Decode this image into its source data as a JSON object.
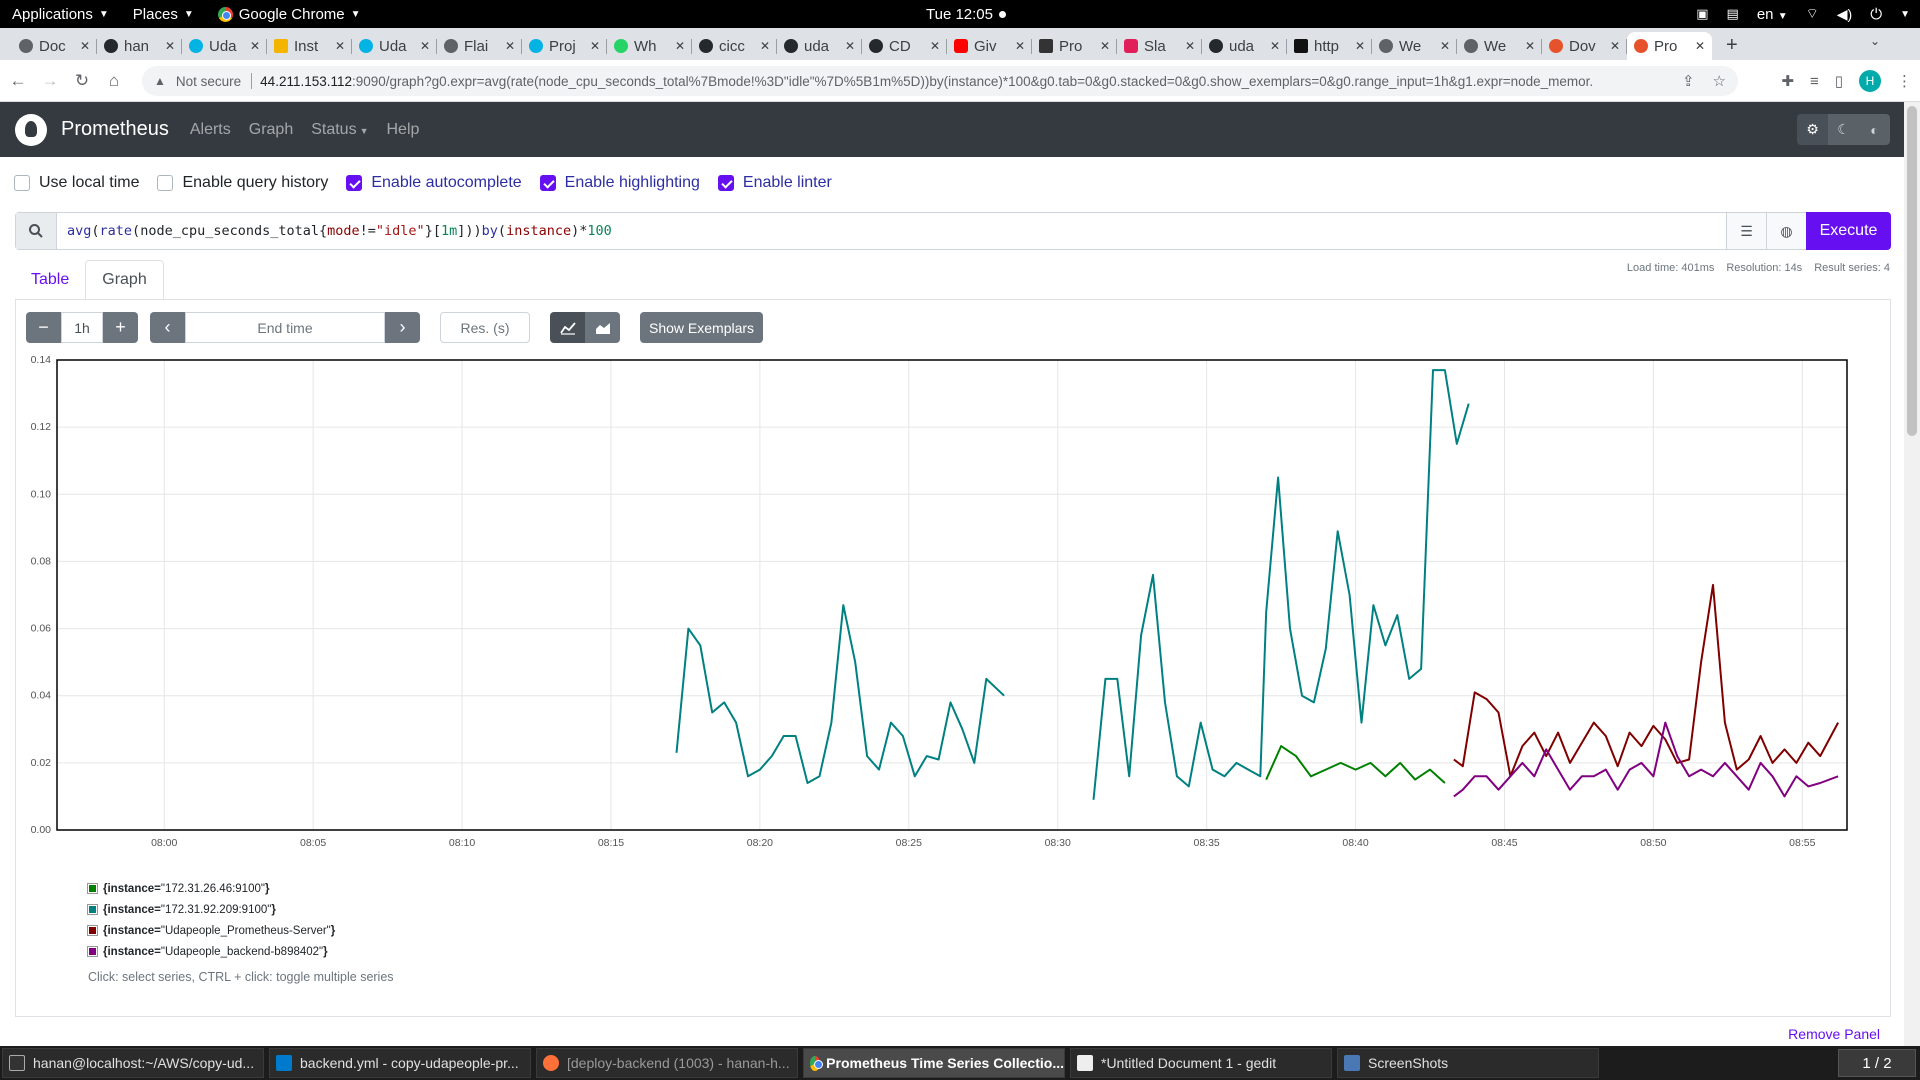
{
  "topbar": {
    "applications": "Applications",
    "places": "Places",
    "browser": "Google Chrome",
    "clock": "Tue 12:05",
    "lang": "en"
  },
  "tabs": [
    "Doc",
    "han",
    "Uda",
    "Inst",
    "Uda",
    "Flai",
    "Proj",
    "Wh",
    "cicc",
    "uda",
    "CD",
    "Giv",
    "Pro",
    "Sla",
    "uda",
    "http",
    "We",
    "We",
    "Dov",
    "Pro"
  ],
  "address": {
    "not_secure": "Not secure",
    "host": "44.211.153.112",
    "path": ":9090/graph?g0.expr=avg(rate(node_cpu_seconds_total%7Bmode!%3D\"idle\"%7D%5B1m%5D))by(instance)*100&g0.tab=0&g0.stacked=0&g0.show_exemplars=0&g0.range_input=1h&g1.expr=node_memor...",
    "avatar": "H"
  },
  "prom": {
    "brand": "Prometheus",
    "nav": {
      "alerts": "Alerts",
      "graph": "Graph",
      "status": "Status",
      "help": "Help"
    }
  },
  "options": {
    "local_time": "Use local time",
    "query_history": "Enable query history",
    "autocomplete": "Enable autocomplete",
    "highlighting": "Enable highlighting",
    "linter": "Enable linter"
  },
  "query": {
    "t1": "avg",
    "t2": "(",
    "t3": "rate",
    "t4": "(",
    "t5": "node_cpu_seconds_total",
    "t6": "{",
    "t7": "mode",
    "t8": "!=",
    "t9": "\"idle\"",
    "t10": "}",
    "t11": "[",
    "t12": "1m",
    "t13": "]",
    "t14": "))",
    "t15": "by",
    "t16": "(",
    "t17": "instance",
    "t18": ")*",
    "t19": "100",
    "execute": "Execute"
  },
  "stats": {
    "load": "Load time: 401ms",
    "res": "Resolution: 14s",
    "series": "Result series: 4"
  },
  "panel_tabs": {
    "table": "Table",
    "graph": "Graph"
  },
  "controls": {
    "range": "1h",
    "end_time": "End time",
    "res": "Res. (s)",
    "exemplars": "Show Exemplars"
  },
  "legend": {
    "prefix": "{instance=",
    "suffix": "}",
    "hint": "Click: select series, CTRL + click: toggle multiple series",
    "remove_panel": "Remove Panel"
  },
  "taskbar": [
    "hanan@localhost:~/AWS/copy-ud...",
    "backend.yml - copy-udapeople-pr...",
    "[deploy-backend (1003) - hanan-h...",
    "Prometheus Time Series Collectio...",
    "*Untitled Document 1 - gedit",
    "ScreenShots"
  ],
  "pager": "1 / 2",
  "chart_data": {
    "type": "line",
    "xlabel": "",
    "ylabel": "",
    "x_ticks": [
      "08:00",
      "08:05",
      "08:10",
      "08:15",
      "08:20",
      "08:25",
      "08:30",
      "08:35",
      "08:40",
      "08:45",
      "08:50",
      "08:55"
    ],
    "y_ticks": [
      "0.00",
      "0.02",
      "0.04",
      "0.06",
      "0.08",
      "0.10",
      "0.12",
      "0.14"
    ],
    "xlim_minutes_after_0800": [
      -3.6,
      56.5
    ],
    "ylim": [
      0,
      0.14
    ],
    "legend_position": "bottom-left",
    "grid": true,
    "series": [
      {
        "name": "\"172.31.26.46:9100\"",
        "color": "#008000",
        "x": [
          "08:37",
          "08:37.5",
          "08:38",
          "08:38.5",
          "08:39",
          "08:39.5",
          "08:40",
          "08:40.5",
          "08:41",
          "08:41.5",
          "08:42",
          "08:42.5",
          "08:43"
        ],
        "y": [
          0.015,
          0.025,
          0.022,
          0.016,
          0.018,
          0.02,
          0.018,
          0.02,
          0.016,
          0.02,
          0.015,
          0.018,
          0.014
        ]
      },
      {
        "name": "\"172.31.92.209:9100\"",
        "color": "#008080",
        "segments": [
          {
            "x": [
              "08:17.2",
              "08:17.6",
              "08:18",
              "08:18.4",
              "08:18.8",
              "08:19.2",
              "08:19.6",
              "08:20",
              "08:20.4",
              "08:20.8",
              "08:21.2",
              "08:21.6",
              "08:22",
              "08:22.4",
              "08:22.8",
              "08:23.2",
              "08:23.6",
              "08:24",
              "08:24.4",
              "08:24.8",
              "08:25.2",
              "08:25.6",
              "08:26",
              "08:26.4",
              "08:26.8",
              "08:27.2",
              "08:27.6",
              "08:28.2"
            ],
            "y": [
              0.023,
              0.06,
              0.055,
              0.035,
              0.038,
              0.032,
              0.016,
              0.018,
              0.022,
              0.028,
              0.028,
              0.014,
              0.016,
              0.032,
              0.067,
              0.05,
              0.022,
              0.018,
              0.032,
              0.028,
              0.016,
              0.022,
              0.021,
              0.038,
              0.03,
              0.02,
              0.045,
              0.04
            ]
          },
          {
            "x": [
              "08:31.2",
              "08:31.6",
              "08:32",
              "08:32.4",
              "08:32.8",
              "08:33.2",
              "08:33.6",
              "08:34",
              "08:34.4",
              "08:34.8",
              "08:35.2",
              "08:35.6",
              "08:36",
              "08:36.4",
              "08:36.8",
              "08:37",
              "08:37.4",
              "08:37.8",
              "08:38.2",
              "08:38.6",
              "08:39",
              "08:39.4",
              "08:39.8",
              "08:40.2",
              "08:40.6",
              "08:41",
              "08:41.4",
              "08:41.8",
              "08:42.2",
              "08:42.6",
              "08:43",
              "08:43.4",
              "08:43.8"
            ],
            "y": [
              0.009,
              0.045,
              0.045,
              0.016,
              0.058,
              0.076,
              0.038,
              0.016,
              0.013,
              0.032,
              0.018,
              0.016,
              0.02,
              0.018,
              0.016,
              0.065,
              0.105,
              0.06,
              0.04,
              0.038,
              0.054,
              0.089,
              0.07,
              0.032,
              0.067,
              0.055,
              0.064,
              0.045,
              0.048,
              0.137,
              0.137,
              0.115,
              0.127
            ]
          }
        ]
      },
      {
        "name": "\"Udapeople_Prometheus-Server\"",
        "color": "#800000",
        "x": [
          "08:43.3",
          "08:43.6",
          "08:44",
          "08:44.4",
          "08:44.8",
          "08:45.2",
          "08:45.6",
          "08:46",
          "08:46.4",
          "08:46.8",
          "08:47.2",
          "08:47.6",
          "08:48",
          "08:48.4",
          "08:48.8",
          "08:49.2",
          "08:49.6",
          "08:50",
          "08:50.4",
          "08:50.8",
          "08:51.2",
          "08:51.6",
          "08:52",
          "08:52.4",
          "08:52.8",
          "08:53.2",
          "08:53.6",
          "08:54",
          "08:54.4",
          "08:54.8",
          "08:55.2",
          "08:55.6",
          "08:56.2"
        ],
        "y": [
          0.021,
          0.019,
          0.041,
          0.039,
          0.035,
          0.016,
          0.025,
          0.029,
          0.022,
          0.029,
          0.02,
          0.026,
          0.032,
          0.028,
          0.019,
          0.029,
          0.025,
          0.031,
          0.027,
          0.02,
          0.021,
          0.05,
          0.073,
          0.032,
          0.018,
          0.021,
          0.028,
          0.02,
          0.024,
          0.02,
          0.026,
          0.022,
          0.032
        ]
      },
      {
        "name": "\"Udapeople_backend-b898402\"",
        "color": "#800080",
        "x": [
          "08:43.3",
          "08:43.6",
          "08:44",
          "08:44.4",
          "08:44.8",
          "08:45.2",
          "08:45.6",
          "08:46",
          "08:46.4",
          "08:46.8",
          "08:47.2",
          "08:47.6",
          "08:48",
          "08:48.4",
          "08:48.8",
          "08:49.2",
          "08:49.6",
          "08:50",
          "08:50.4",
          "08:50.8",
          "08:51.2",
          "08:51.6",
          "08:52",
          "08:52.4",
          "08:52.8",
          "08:53.2",
          "08:53.6",
          "08:54",
          "08:54.4",
          "08:54.8",
          "08:55.2",
          "08:55.6",
          "08:56.2"
        ],
        "y": [
          0.01,
          0.012,
          0.016,
          0.016,
          0.012,
          0.016,
          0.02,
          0.016,
          0.024,
          0.018,
          0.012,
          0.016,
          0.016,
          0.018,
          0.012,
          0.018,
          0.02,
          0.016,
          0.032,
          0.022,
          0.016,
          0.018,
          0.016,
          0.02,
          0.016,
          0.012,
          0.02,
          0.016,
          0.01,
          0.016,
          0.013,
          0.014,
          0.016
        ]
      }
    ]
  }
}
